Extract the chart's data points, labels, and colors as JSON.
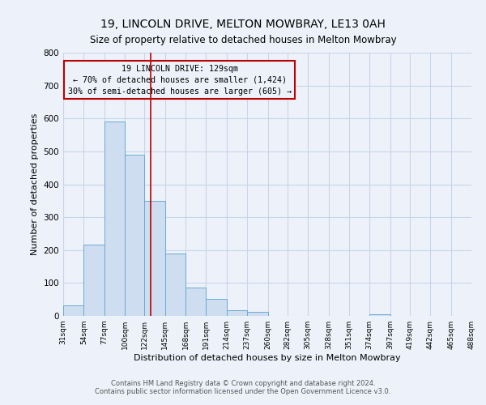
{
  "title1": "19, LINCOLN DRIVE, MELTON MOWBRAY, LE13 0AH",
  "title2": "Size of property relative to detached houses in Melton Mowbray",
  "xlabel": "Distribution of detached houses by size in Melton Mowbray",
  "ylabel": "Number of detached properties",
  "bin_edges": [
    31,
    54,
    77,
    100,
    122,
    145,
    168,
    191,
    214,
    237,
    260,
    282,
    305,
    328,
    351,
    374,
    397,
    419,
    442,
    465,
    488
  ],
  "bin_labels": [
    "31sqm",
    "54sqm",
    "77sqm",
    "100sqm",
    "122sqm",
    "145sqm",
    "168sqm",
    "191sqm",
    "214sqm",
    "237sqm",
    "260sqm",
    "282sqm",
    "305sqm",
    "328sqm",
    "351sqm",
    "374sqm",
    "397sqm",
    "419sqm",
    "442sqm",
    "465sqm",
    "488sqm"
  ],
  "counts": [
    33,
    217,
    590,
    490,
    350,
    190,
    85,
    52,
    18,
    13,
    0,
    0,
    0,
    0,
    0,
    5,
    0,
    0,
    0,
    0
  ],
  "bar_color": "#cfddf0",
  "bar_edge_color": "#6aaad4",
  "vline_x": 129,
  "vline_color": "#bb0000",
  "annotation_box_text": "19 LINCOLN DRIVE: 129sqm\n← 70% of detached houses are smaller (1,424)\n30% of semi-detached houses are larger (605) →",
  "annotation_box_edge_color": "#bb0000",
  "ylim": [
    0,
    800
  ],
  "yticks": [
    0,
    100,
    200,
    300,
    400,
    500,
    600,
    700,
    800
  ],
  "grid_color": "#c8d4e8",
  "bg_color": "#edf2fa",
  "footer1": "Contains HM Land Registry data © Crown copyright and database right 2024.",
  "footer2": "Contains public sector information licensed under the Open Government Licence v3.0."
}
